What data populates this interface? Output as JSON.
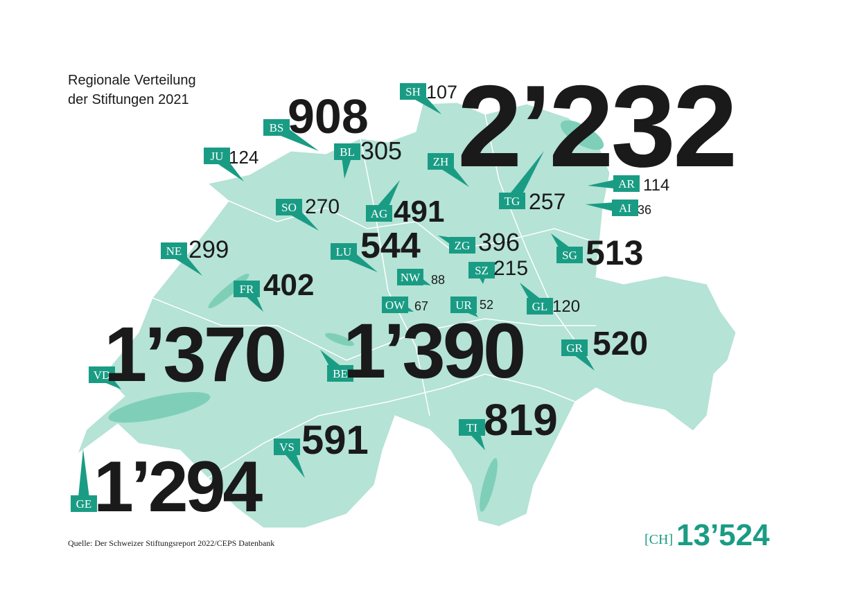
{
  "title": [
    "Regionale Verteilung",
    "der Stiftungen 2021"
  ],
  "cantons": [
    {
      "code": "SH",
      "value": "107"
    },
    {
      "code": "ZH",
      "value": "2’232"
    },
    {
      "code": "BS",
      "value": "908"
    },
    {
      "code": "BL",
      "value": "305"
    },
    {
      "code": "JU",
      "value": "124"
    },
    {
      "code": "AG",
      "value": "491"
    },
    {
      "code": "TG",
      "value": "257"
    },
    {
      "code": "AR",
      "value": "114"
    },
    {
      "code": "AI",
      "value": "36"
    },
    {
      "code": "SO",
      "value": "270"
    },
    {
      "code": "LU",
      "value": "544"
    },
    {
      "code": "ZG",
      "value": "396"
    },
    {
      "code": "SG",
      "value": "513"
    },
    {
      "code": "NE",
      "value": "299"
    },
    {
      "code": "SZ",
      "value": "215"
    },
    {
      "code": "NW",
      "value": "88"
    },
    {
      "code": "FR",
      "value": "402"
    },
    {
      "code": "OW",
      "value": "67"
    },
    {
      "code": "UR",
      "value": "52"
    },
    {
      "code": "GL",
      "value": "120"
    },
    {
      "code": "VD",
      "value": "1’370"
    },
    {
      "code": "BE",
      "value": "1’390"
    },
    {
      "code": "GR",
      "value": "520"
    },
    {
      "code": "TI",
      "value": "819"
    },
    {
      "code": "VS",
      "value": "591"
    },
    {
      "code": "GE",
      "value": "1’294"
    }
  ],
  "source": "Quelle: Der Schweizer Stiftungsreport 2022/CEPS Datenbank",
  "total": {
    "label": "[CH]",
    "value": "13’524"
  }
}
